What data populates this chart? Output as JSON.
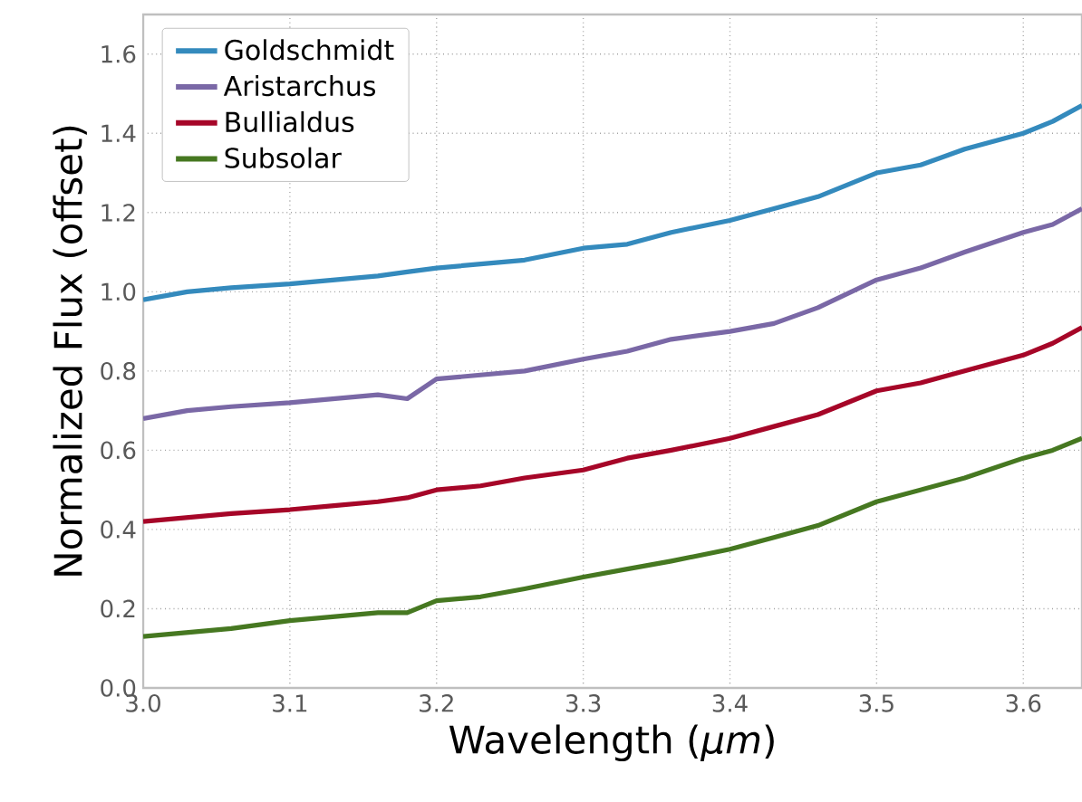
{
  "chart_data": {
    "type": "line",
    "xlabel": "Wavelength (*μm*)",
    "ylabel": "Normalized Flux (offset)",
    "xlim": [
      3.0,
      3.64
    ],
    "ylim": [
      0.0,
      1.7
    ],
    "xticks": [
      {
        "value": 3,
        "label": "3.0"
      },
      3.1,
      3.2,
      3.3,
      3.4,
      3.5,
      3.6
    ],
    "yticks": [
      {
        "value": 0,
        "label": "0.0"
      },
      0.2,
      0.4,
      0.6,
      0.8,
      {
        "value": 1,
        "label": "1.0"
      },
      1.2,
      1.4,
      1.6
    ],
    "grid": true,
    "legend": "top left",
    "line_style": "solid",
    "marker": "none",
    "x": [
      3.0,
      3.03,
      3.06,
      3.1,
      3.13,
      3.16,
      3.18,
      3.2,
      3.23,
      3.26,
      3.3,
      3.33,
      3.36,
      3.4,
      3.43,
      3.46,
      3.5,
      3.53,
      3.56,
      3.6,
      3.62,
      3.64
    ],
    "series": [
      {
        "name": "Goldschmidt",
        "color": "#348abd",
        "values": [
          0.98,
          1.0,
          1.01,
          1.02,
          1.03,
          1.04,
          1.05,
          1.06,
          1.07,
          1.08,
          1.11,
          1.12,
          1.15,
          1.18,
          1.21,
          1.24,
          1.3,
          1.32,
          1.36,
          1.4,
          1.43,
          1.47
        ]
      },
      {
        "name": "Aristarchus",
        "color": "#7a68a6",
        "values": [
          0.68,
          0.7,
          0.71,
          0.72,
          0.73,
          0.74,
          0.73,
          0.78,
          0.79,
          0.8,
          0.83,
          0.85,
          0.88,
          0.9,
          0.92,
          0.96,
          1.03,
          1.06,
          1.1,
          1.15,
          1.17,
          1.21
        ]
      },
      {
        "name": "Bullialdus",
        "color": "#a60628",
        "values": [
          0.42,
          0.43,
          0.44,
          0.45,
          0.46,
          0.47,
          0.48,
          0.5,
          0.51,
          0.53,
          0.55,
          0.58,
          0.6,
          0.63,
          0.66,
          0.69,
          0.75,
          0.77,
          0.8,
          0.84,
          0.87,
          0.91
        ]
      },
      {
        "name": "Subsolar",
        "color": "#467821",
        "values": [
          0.13,
          0.14,
          0.15,
          0.17,
          0.18,
          0.19,
          0.19,
          0.22,
          0.23,
          0.25,
          0.28,
          0.3,
          0.32,
          0.35,
          0.38,
          0.41,
          0.47,
          0.5,
          0.53,
          0.58,
          0.6,
          0.63
        ]
      }
    ]
  }
}
